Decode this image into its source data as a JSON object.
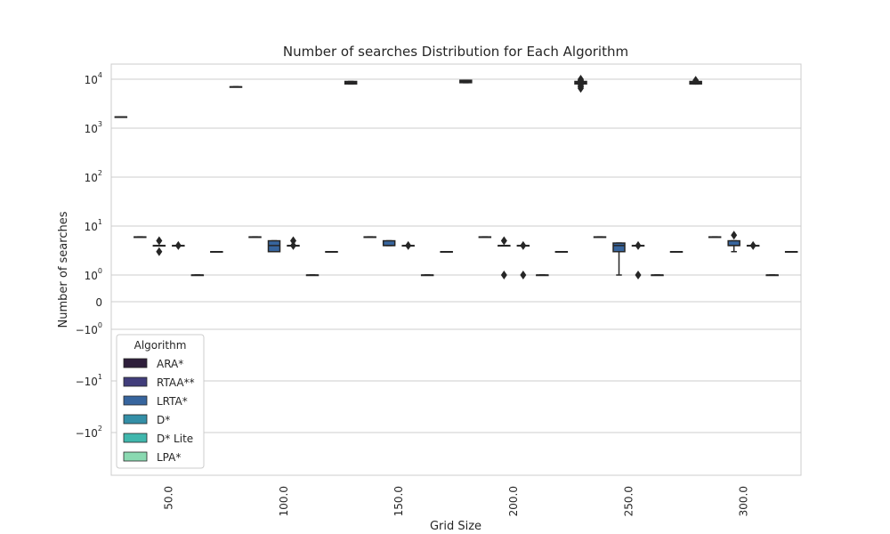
{
  "chart_data": {
    "type": "box",
    "title": "Number of searches Distribution for Each Algorithm",
    "xlabel": "Grid Size",
    "ylabel": "Number of searches",
    "yscale": "symlog",
    "ylim": [
      -400,
      12000
    ],
    "grid": true,
    "categories": [
      "50.0",
      "100.0",
      "150.0",
      "200.0",
      "250.0",
      "300.0"
    ],
    "y_ticks": [
      {
        "value": 10000,
        "base": "10",
        "exp": "4"
      },
      {
        "value": 1000,
        "base": "10",
        "exp": "3"
      },
      {
        "value": 100,
        "base": "10",
        "exp": "2"
      },
      {
        "value": 10,
        "base": "10",
        "exp": "1"
      },
      {
        "value": 1,
        "base": "10",
        "exp": "0"
      },
      {
        "value": 0,
        "base": "0",
        "exp": ""
      },
      {
        "value": -1,
        "base": "−10",
        "exp": "0"
      },
      {
        "value": -10,
        "base": "−10",
        "exp": "1"
      },
      {
        "value": -100,
        "base": "−10",
        "exp": "2"
      }
    ],
    "legend": {
      "title": "Algorithm",
      "position": "lower-left"
    },
    "series": [
      {
        "name": "ARA*",
        "color": "#2e1e3b",
        "boxes": [
          {
            "q1": 1700,
            "median": 1700,
            "q3": 1700,
            "whislo": 1700,
            "whishi": 1700,
            "fliers": []
          },
          {
            "q1": 7000,
            "median": 7000,
            "q3": 7000,
            "whislo": 7000,
            "whishi": 7000,
            "fliers": []
          },
          {
            "q1": 8000,
            "median": 8500,
            "q3": 9000,
            "whislo": 8000,
            "whishi": 9000,
            "fliers": []
          },
          {
            "q1": 8500,
            "median": 9000,
            "q3": 9500,
            "whislo": 8500,
            "whishi": 9500,
            "fliers": []
          },
          {
            "q1": 8000,
            "median": 8500,
            "q3": 9000,
            "whislo": 7000,
            "whishi": 9500,
            "fliers": [
              6500,
              7000,
              7500,
              9500,
              10000
            ]
          },
          {
            "q1": 8000,
            "median": 8500,
            "q3": 9000,
            "whislo": 8000,
            "whishi": 9000,
            "fliers": [
              9500
            ]
          }
        ]
      },
      {
        "name": "RTAA**",
        "color": "#413d7b",
        "boxes": [
          {
            "q1": 6,
            "median": 6,
            "q3": 6,
            "whislo": 6,
            "whishi": 6,
            "fliers": []
          },
          {
            "q1": 6,
            "median": 6,
            "q3": 6,
            "whislo": 6,
            "whishi": 6,
            "fliers": []
          },
          {
            "q1": 6,
            "median": 6,
            "q3": 6,
            "whislo": 6,
            "whishi": 6,
            "fliers": []
          },
          {
            "q1": 6,
            "median": 6,
            "q3": 6,
            "whislo": 6,
            "whishi": 6,
            "fliers": []
          },
          {
            "q1": 6,
            "median": 6,
            "q3": 6,
            "whislo": 6,
            "whishi": 6,
            "fliers": []
          },
          {
            "q1": 6,
            "median": 6,
            "q3": 6,
            "whislo": 6,
            "whishi": 6,
            "fliers": []
          }
        ]
      },
      {
        "name": "LRTA*",
        "color": "#37659e",
        "boxes": [
          {
            "q1": 4,
            "median": 4,
            "q3": 4,
            "whislo": 4,
            "whishi": 4,
            "fliers": [
              3,
              5
            ]
          },
          {
            "q1": 3,
            "median": 4,
            "q3": 5,
            "whislo": 3,
            "whishi": 5,
            "fliers": []
          },
          {
            "q1": 4,
            "median": 4,
            "q3": 5,
            "whislo": 4,
            "whishi": 5,
            "fliers": []
          },
          {
            "q1": 4,
            "median": 4,
            "q3": 4,
            "whislo": 4,
            "whishi": 4,
            "fliers": [
              5,
              1
            ]
          },
          {
            "q1": 3,
            "median": 4,
            "q3": 4.5,
            "whislo": 1,
            "whishi": 4.5,
            "fliers": []
          },
          {
            "q1": 4,
            "median": 4,
            "q3": 5,
            "whislo": 3,
            "whishi": 5,
            "fliers": [
              6.5
            ]
          }
        ]
      },
      {
        "name": "D*",
        "color": "#348fa7",
        "boxes": [
          {
            "q1": 4,
            "median": 4,
            "q3": 4,
            "whislo": 4,
            "whishi": 4,
            "fliers": [
              4
            ]
          },
          {
            "q1": 4,
            "median": 4,
            "q3": 4,
            "whislo": 4,
            "whishi": 4,
            "fliers": [
              5,
              4
            ]
          },
          {
            "q1": 4,
            "median": 4,
            "q3": 4,
            "whislo": 4,
            "whishi": 4,
            "fliers": [
              4
            ]
          },
          {
            "q1": 4,
            "median": 4,
            "q3": 4,
            "whislo": 4,
            "whishi": 4,
            "fliers": [
              4,
              1
            ]
          },
          {
            "q1": 4,
            "median": 4,
            "q3": 4,
            "whislo": 4,
            "whishi": 4,
            "fliers": [
              4,
              1
            ]
          },
          {
            "q1": 4,
            "median": 4,
            "q3": 4,
            "whislo": 4,
            "whishi": 4,
            "fliers": [
              4
            ]
          }
        ]
      },
      {
        "name": "D* Lite",
        "color": "#40b7ad",
        "boxes": [
          {
            "q1": 1,
            "median": 1,
            "q3": 1,
            "whislo": 1,
            "whishi": 1,
            "fliers": []
          },
          {
            "q1": 1,
            "median": 1,
            "q3": 1,
            "whislo": 1,
            "whishi": 1,
            "fliers": []
          },
          {
            "q1": 1,
            "median": 1,
            "q3": 1,
            "whislo": 1,
            "whishi": 1,
            "fliers": []
          },
          {
            "q1": 1,
            "median": 1,
            "q3": 1,
            "whislo": 1,
            "whishi": 1,
            "fliers": []
          },
          {
            "q1": 1,
            "median": 1,
            "q3": 1,
            "whislo": 1,
            "whishi": 1,
            "fliers": []
          },
          {
            "q1": 1,
            "median": 1,
            "q3": 1,
            "whislo": 1,
            "whishi": 1,
            "fliers": []
          }
        ]
      },
      {
        "name": "LPA*",
        "color": "#8ad9b1",
        "boxes": [
          {
            "q1": 3,
            "median": 3,
            "q3": 3,
            "whislo": 3,
            "whishi": 3,
            "fliers": []
          },
          {
            "q1": 3,
            "median": 3,
            "q3": 3,
            "whislo": 3,
            "whishi": 3,
            "fliers": []
          },
          {
            "q1": 3,
            "median": 3,
            "q3": 3,
            "whislo": 3,
            "whishi": 3,
            "fliers": []
          },
          {
            "q1": 3,
            "median": 3,
            "q3": 3,
            "whislo": 3,
            "whishi": 3,
            "fliers": []
          },
          {
            "q1": 3,
            "median": 3,
            "q3": 3,
            "whislo": 3,
            "whishi": 3,
            "fliers": []
          },
          {
            "q1": 3,
            "median": 3,
            "q3": 3,
            "whislo": 3,
            "whishi": 3,
            "fliers": []
          }
        ]
      }
    ]
  }
}
